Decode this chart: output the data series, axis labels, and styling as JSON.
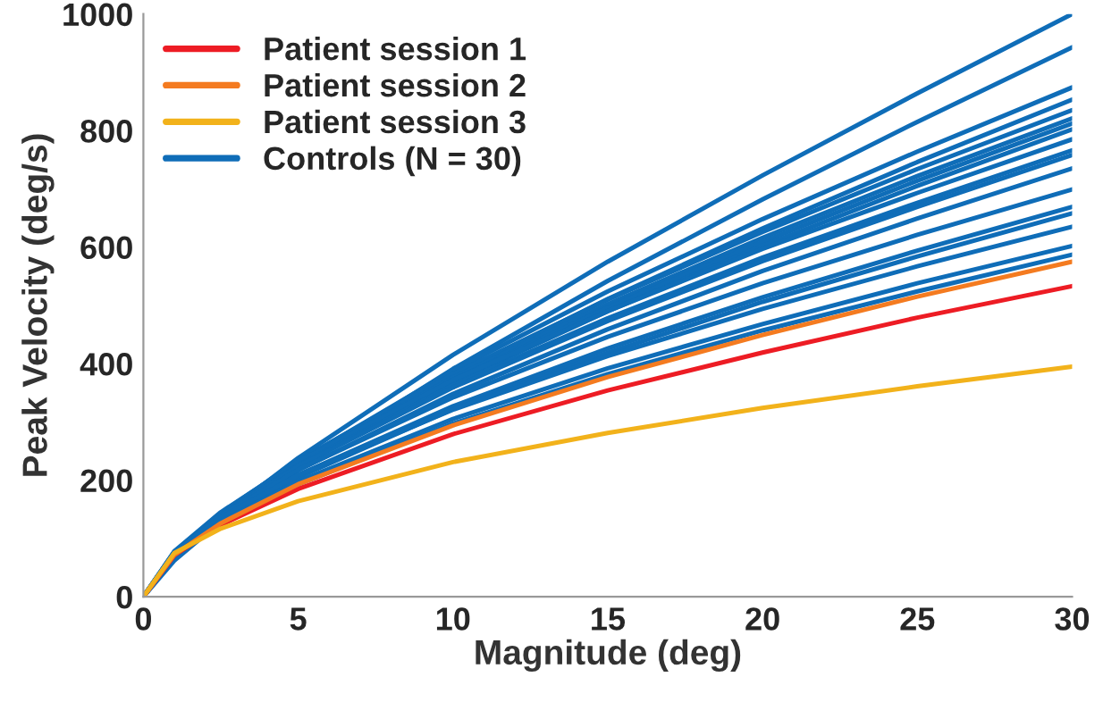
{
  "chart_data": {
    "type": "line",
    "xlabel": "Magnitude (deg)",
    "ylabel": "Peak Velocity (deg/s)",
    "x": [
      0,
      1,
      2.5,
      5,
      10,
      15,
      20,
      25,
      30
    ],
    "xlim": [
      0,
      30
    ],
    "ylim": [
      0,
      1000
    ],
    "xticks": [
      0,
      5,
      10,
      15,
      20,
      25,
      30
    ],
    "yticks": [
      0,
      200,
      400,
      600,
      800,
      1000
    ],
    "legend": "top left",
    "series": [
      {
        "name": "Controls (N = 30)",
        "color": "#0f6db8",
        "values": [
          0,
          66,
          137,
          238,
          415,
          575,
          723,
          864,
          1000
        ]
      },
      {
        "color": "#0f6db8",
        "values": [
          0,
          62,
          129,
          224,
          391,
          542,
          682,
          815,
          943
        ]
      },
      {
        "color": "#0f6db8",
        "values": [
          0,
          71,
          139,
          232,
          388,
          524,
          648,
          764,
          874
        ]
      },
      {
        "color": "#0f6db8",
        "values": [
          0,
          69,
          136,
          226,
          378,
          511,
          632,
          746,
          853
        ]
      },
      {
        "color": "#0f6db8",
        "values": [
          0,
          75,
          143,
          234,
          382,
          510,
          626,
          734,
          835
        ]
      },
      {
        "color": "#0f6db8",
        "values": [
          0,
          73,
          140,
          230,
          376,
          502,
          616,
          722,
          821
        ]
      },
      {
        "color": "#0f6db8",
        "values": [
          0,
          73,
          139,
          227,
          372,
          496,
          609,
          714,
          812
        ]
      },
      {
        "color": "#0f6db8",
        "values": [
          0,
          72,
          137,
          225,
          367,
          490,
          602,
          705,
          802
        ]
      },
      {
        "color": "#0f6db8",
        "values": [
          0,
          78,
          145,
          232,
          372,
          490,
          597,
          693,
          785
        ]
      },
      {
        "color": "#0f6db8",
        "values": [
          0,
          76,
          141,
          226,
          363,
          478,
          582,
          676,
          766
        ]
      },
      {
        "color": "#0f6db8",
        "values": [
          0,
          75,
          140,
          224,
          359,
          473,
          576,
          669,
          758
        ]
      },
      {
        "color": "#0f6db8",
        "values": [
          0,
          73,
          136,
          217,
          348,
          459,
          559,
          649,
          735
        ]
      },
      {
        "color": "#0f6db8",
        "values": [
          0,
          77,
          139,
          218,
          342,
          446,
          538,
          621,
          699
        ]
      },
      {
        "color": "#0f6db8",
        "values": [
          0,
          73,
          133,
          209,
          327,
          426,
          514,
          594,
          669
        ]
      },
      {
        "color": "#0f6db8",
        "values": [
          0,
          72,
          131,
          205,
          322,
          419,
          506,
          584,
          658
        ]
      },
      {
        "color": "#0f6db8",
        "values": [
          0,
          77,
          136,
          209,
          321,
          413,
          494,
          567,
          635
        ]
      },
      {
        "color": "#0f6db8",
        "values": [
          0,
          73,
          129,
          198,
          305,
          392,
          468,
          538,
          602
        ]
      },
      {
        "color": "#0f6db8",
        "values": [
          0,
          71,
          126,
          193,
          297,
          382,
          457,
          524,
          587
        ]
      },
      {
        "name": "Patient session 1",
        "color": "#ed1c24",
        "values": [
          0,
          71,
          123,
          185,
          279,
          354,
          419,
          479,
          533
        ]
      },
      {
        "name": "Patient session 2",
        "color": "#f47b20",
        "values": [
          0,
          72,
          126,
          193,
          294,
          377,
          449,
          515,
          575
        ]
      },
      {
        "name": "Patient session 3",
        "color": "#f2b21b",
        "values": [
          0,
          75,
          117,
          164,
          231,
          281,
          324,
          361,
          395
        ]
      }
    ]
  }
}
